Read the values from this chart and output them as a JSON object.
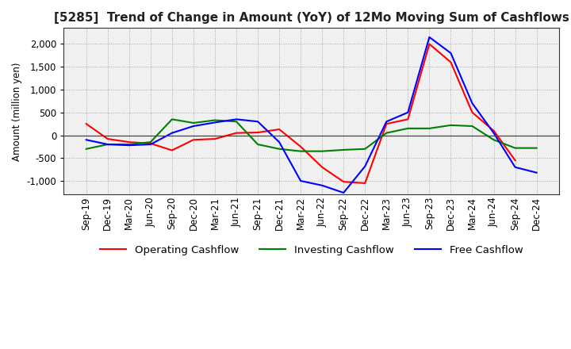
{
  "title": "[5285]  Trend of Change in Amount (YoY) of 12Mo Moving Sum of Cashflows",
  "ylabel": "Amount (million yen)",
  "x_labels": [
    "Sep-19",
    "Dec-19",
    "Mar-20",
    "Jun-20",
    "Sep-20",
    "Dec-20",
    "Mar-21",
    "Jun-21",
    "Sep-21",
    "Dec-21",
    "Mar-22",
    "Jun-22",
    "Sep-22",
    "Dec-22",
    "Mar-23",
    "Jun-23",
    "Sep-23",
    "Dec-23",
    "Mar-24",
    "Jun-24",
    "Sep-24",
    "Dec-24"
  ],
  "operating": [
    250,
    -80,
    -150,
    -180,
    -330,
    -100,
    -80,
    50,
    60,
    130,
    -250,
    -700,
    -1020,
    -1050,
    250,
    350,
    2000,
    1600,
    500,
    100,
    -550,
    null
  ],
  "investing": [
    -300,
    -200,
    -200,
    -150,
    350,
    270,
    330,
    300,
    -200,
    -300,
    -350,
    -350,
    -320,
    -300,
    50,
    150,
    150,
    220,
    200,
    -100,
    -280,
    -280
  ],
  "free": [
    -100,
    -200,
    -220,
    -200,
    50,
    200,
    280,
    350,
    300,
    -150,
    -1000,
    -1100,
    -1260,
    -680,
    300,
    500,
    2150,
    1800,
    700,
    50,
    -700,
    -820
  ],
  "colors": {
    "operating": "#ff0000",
    "investing": "#008000",
    "free": "#0000ff"
  },
  "ylim": [
    -1300,
    2350
  ],
  "yticks": [
    -1000,
    -500,
    0,
    500,
    1000,
    1500,
    2000
  ],
  "grid_color": "#999999",
  "bg_color": "#ffffff",
  "plot_bg": "#f0f0f0",
  "title_fontsize": 11,
  "axis_fontsize": 8.5,
  "legend_fontsize": 9.5
}
